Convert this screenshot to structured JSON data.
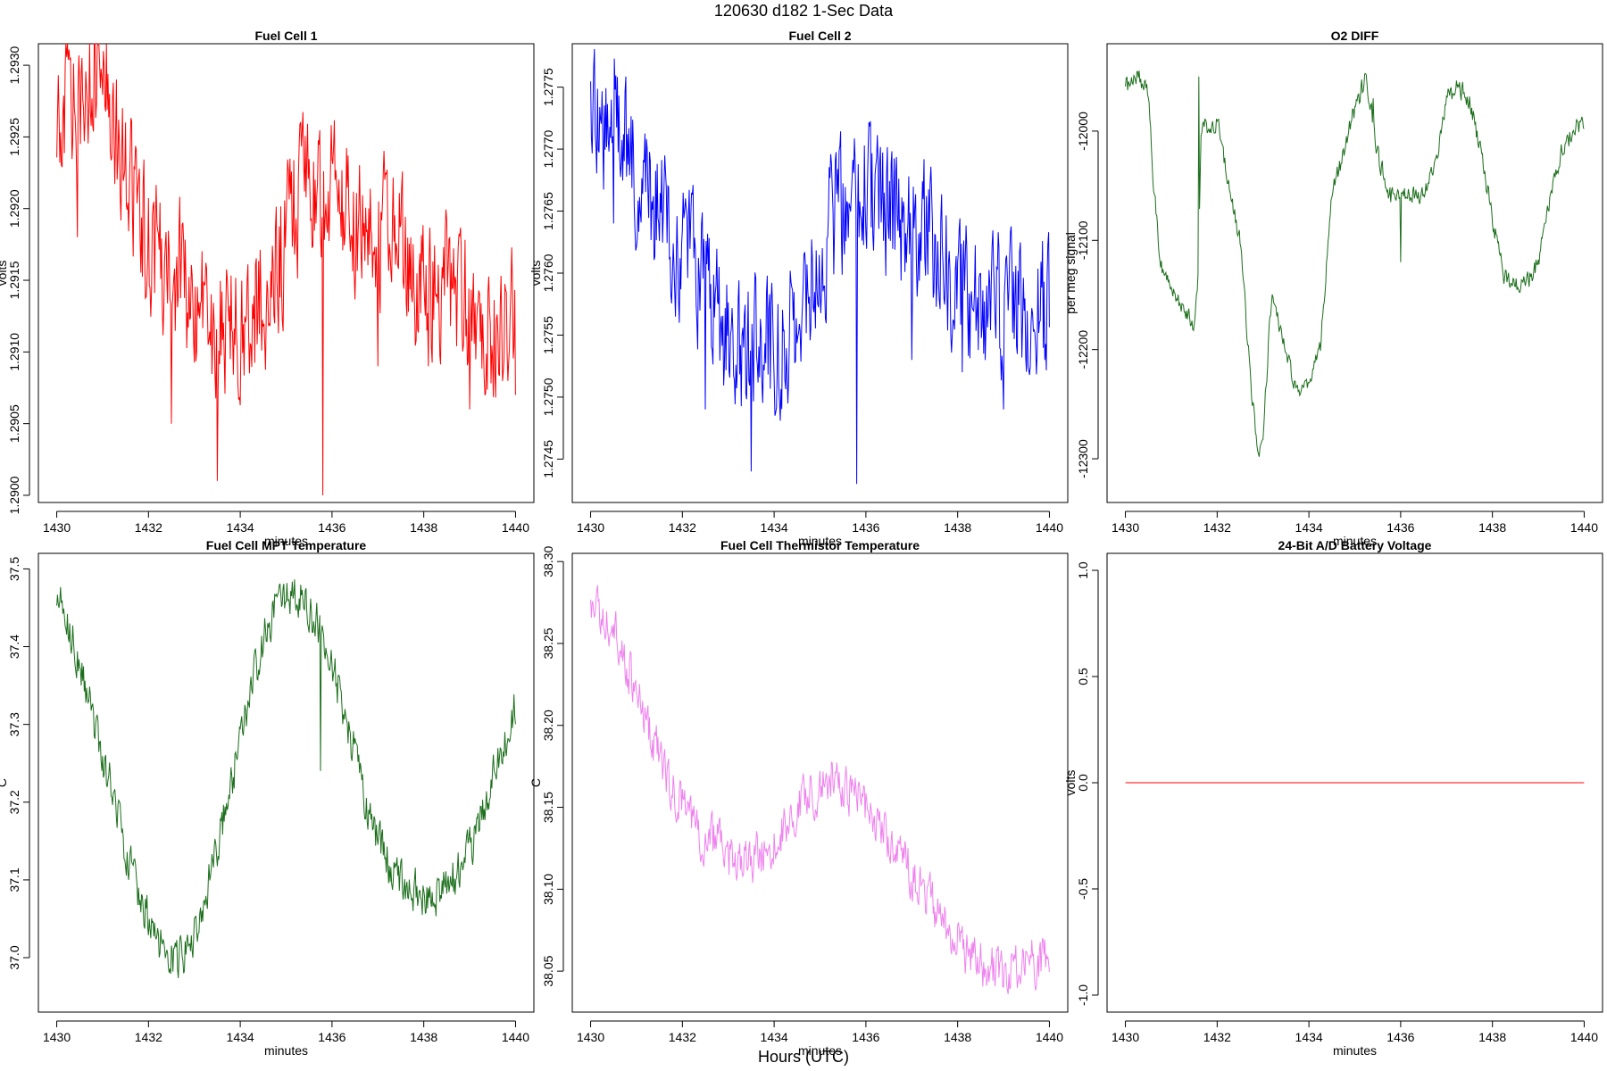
{
  "figure": {
    "title": "120630   d182   1-Sec Data",
    "xlabel": "Hours (UTC)"
  },
  "chart_data": [
    {
      "type": "line",
      "title": "Fuel Cell 1",
      "xlabel": "minutes",
      "ylabel": "volts",
      "xlim": [
        1429.6,
        1440.4
      ],
      "ylim": [
        1.28995,
        1.29315
      ],
      "xticks": [
        1430,
        1432,
        1434,
        1436,
        1438,
        1440
      ],
      "yticks": [
        1.29,
        1.2905,
        1.291,
        1.2915,
        1.292,
        1.2925,
        1.293
      ],
      "ytick_labels": [
        "1.2900",
        "1.2905",
        "1.2910",
        "1.2915",
        "1.2920",
        "1.2925",
        "1.2930"
      ],
      "color": "#ff0000",
      "noise": 0.00045,
      "spikes": [
        [
          1430.45,
          1.2918
        ],
        [
          1432.5,
          1.2905
        ],
        [
          1433.5,
          1.2901
        ],
        [
          1435.8,
          1.29
        ],
        [
          1437.0,
          1.2909
        ],
        [
          1438.1,
          1.2909
        ],
        [
          1439.0,
          1.2906
        ],
        [
          1440.0,
          1.2907
        ]
      ],
      "x": [
        1430.0,
        1430.25,
        1430.5,
        1430.75,
        1431.0,
        1431.25,
        1431.5,
        1431.75,
        1432.0,
        1432.25,
        1432.5,
        1432.75,
        1433.0,
        1433.25,
        1433.5,
        1433.75,
        1434.0,
        1434.25,
        1434.5,
        1434.75,
        1435.0,
        1435.25,
        1435.5,
        1435.75,
        1436.0,
        1436.25,
        1436.5,
        1436.75,
        1437.0,
        1437.25,
        1437.5,
        1437.75,
        1438.0,
        1438.25,
        1438.5,
        1438.75,
        1439.0,
        1439.25,
        1439.5,
        1439.75,
        1440.0
      ],
      "y": [
        1.2925,
        1.2928,
        1.2928,
        1.2929,
        1.2929,
        1.2926,
        1.2923,
        1.292,
        1.2918,
        1.2917,
        1.2916,
        1.2915,
        1.2913,
        1.2912,
        1.2911,
        1.2912,
        1.2912,
        1.2913,
        1.2914,
        1.2916,
        1.2918,
        1.292,
        1.2921,
        1.2921,
        1.2921,
        1.292,
        1.2919,
        1.2918,
        1.2918,
        1.2918,
        1.2917,
        1.2916,
        1.2915,
        1.2914,
        1.2914,
        1.2914,
        1.2913,
        1.2912,
        1.2912,
        1.2912,
        1.2912
      ]
    },
    {
      "type": "line",
      "title": "Fuel Cell 2",
      "xlabel": "minutes",
      "ylabel": "volts",
      "xlim": [
        1429.6,
        1440.4
      ],
      "ylim": [
        1.27415,
        1.27785
      ],
      "xticks": [
        1430,
        1432,
        1434,
        1436,
        1438,
        1440
      ],
      "yticks": [
        1.2745,
        1.275,
        1.2755,
        1.276,
        1.2765,
        1.277,
        1.2775
      ],
      "ytick_labels": [
        "1.2745",
        "1.2750",
        "1.2755",
        "1.2760",
        "1.2765",
        "1.2770",
        "1.2775"
      ],
      "color": "#0000ff",
      "noise": 0.0005,
      "spikes": [
        [
          1430.5,
          1.2764
        ],
        [
          1432.5,
          1.2749
        ],
        [
          1433.5,
          1.2744
        ],
        [
          1435.8,
          1.2743
        ],
        [
          1437.0,
          1.2753
        ],
        [
          1438.1,
          1.2752
        ],
        [
          1439.0,
          1.2749
        ],
        [
          1439.9,
          1.2753
        ]
      ],
      "x": [
        1430.0,
        1430.25,
        1430.5,
        1430.75,
        1431.0,
        1431.25,
        1431.5,
        1431.75,
        1432.0,
        1432.25,
        1432.5,
        1432.75,
        1433.0,
        1433.25,
        1433.5,
        1433.75,
        1434.0,
        1434.25,
        1434.5,
        1434.75,
        1435.0,
        1435.25,
        1435.5,
        1435.75,
        1436.0,
        1436.25,
        1436.5,
        1436.75,
        1437.0,
        1437.25,
        1437.5,
        1437.75,
        1438.0,
        1438.25,
        1438.5,
        1438.75,
        1439.0,
        1439.25,
        1439.5,
        1439.75,
        1440.0
      ],
      "y": [
        1.2771,
        1.2772,
        1.2773,
        1.2771,
        1.2768,
        1.2766,
        1.2765,
        1.2763,
        1.2762,
        1.276,
        1.2758,
        1.2756,
        1.2755,
        1.2754,
        1.2754,
        1.2754,
        1.2754,
        1.2755,
        1.2756,
        1.2758,
        1.2761,
        1.2764,
        1.2766,
        1.2767,
        1.2767,
        1.2766,
        1.2765,
        1.2764,
        1.2764,
        1.2764,
        1.2762,
        1.276,
        1.2759,
        1.2758,
        1.2758,
        1.2758,
        1.2757,
        1.2757,
        1.2757,
        1.2757,
        1.2757
      ]
    },
    {
      "type": "line",
      "title": "O2 DIFF",
      "xlabel": "minutes",
      "ylabel": "per meg signal",
      "xlim": [
        1429.6,
        1440.4
      ],
      "ylim": [
        -12340,
        -11920
      ],
      "xticks": [
        1430,
        1432,
        1434,
        1436,
        1438,
        1440
      ],
      "yticks": [
        -12300,
        -12200,
        -12100,
        -12000
      ],
      "ytick_labels": [
        "-12300",
        "-12200",
        "-12100",
        "-12000"
      ],
      "color": "#1b6e1b",
      "noise": 8,
      "spikes": [
        [
          1431.6,
          -11950
        ],
        [
          1435.4,
          -11970
        ],
        [
          1436.0,
          -12120
        ],
        [
          1437.1,
          -11960
        ]
      ],
      "x": [
        1430.0,
        1430.25,
        1430.5,
        1430.6,
        1430.75,
        1431.0,
        1431.25,
        1431.5,
        1431.6,
        1431.65,
        1432.0,
        1432.25,
        1432.5,
        1432.75,
        1432.9,
        1433.0,
        1433.2,
        1433.4,
        1433.75,
        1434.0,
        1434.25,
        1434.5,
        1434.75,
        1435.0,
        1435.25,
        1435.5,
        1435.75,
        1436.0,
        1436.25,
        1436.5,
        1436.75,
        1437.0,
        1437.25,
        1437.5,
        1437.75,
        1438.0,
        1438.25,
        1438.5,
        1438.75,
        1439.0,
        1439.25,
        1439.5,
        1439.75,
        1440.0
      ],
      "y": [
        -11960,
        -11950,
        -11960,
        -12040,
        -12120,
        -12150,
        -12160,
        -12180,
        -12120,
        -12000,
        -11990,
        -12050,
        -12100,
        -12240,
        -12300,
        -12280,
        -12140,
        -12190,
        -12240,
        -12230,
        -12200,
        -12060,
        -12020,
        -11980,
        -11950,
        -12020,
        -12060,
        -12060,
        -12060,
        -12060,
        -12030,
        -11970,
        -11960,
        -11970,
        -12020,
        -12080,
        -12130,
        -12140,
        -12140,
        -12120,
        -12060,
        -12020,
        -12000,
        -11990
      ]
    },
    {
      "type": "line",
      "title": "Fuel Cell MPT Temperature",
      "xlabel": "minutes",
      "ylabel": "C",
      "xlim": [
        1429.6,
        1440.4
      ],
      "ylim": [
        36.93,
        37.52
      ],
      "xticks": [
        1430,
        1432,
        1434,
        1436,
        1438,
        1440
      ],
      "yticks": [
        37.0,
        37.1,
        37.2,
        37.3,
        37.4,
        37.5
      ],
      "ytick_labels": [
        "37.0",
        "37.1",
        "37.2",
        "37.3",
        "37.4",
        "37.5"
      ],
      "color": "#1b6e1b",
      "noise": 0.025,
      "spikes": [
        [
          1435.75,
          37.24
        ]
      ],
      "x": [
        1430.0,
        1430.25,
        1430.5,
        1430.75,
        1431.0,
        1431.25,
        1431.5,
        1431.75,
        1432.0,
        1432.25,
        1432.5,
        1432.75,
        1433.0,
        1433.25,
        1433.5,
        1433.75,
        1434.0,
        1434.25,
        1434.5,
        1434.75,
        1435.0,
        1435.25,
        1435.5,
        1435.75,
        1436.0,
        1436.25,
        1436.5,
        1436.75,
        1437.0,
        1437.25,
        1437.5,
        1437.75,
        1438.0,
        1438.25,
        1438.5,
        1438.75,
        1439.0,
        1439.25,
        1439.5,
        1439.75,
        1440.0
      ],
      "y": [
        37.47,
        37.43,
        37.38,
        37.32,
        37.26,
        37.2,
        37.14,
        37.09,
        37.05,
        37.02,
        37.0,
        37.0,
        37.03,
        37.08,
        37.14,
        37.21,
        37.28,
        37.35,
        37.41,
        37.45,
        37.47,
        37.47,
        37.45,
        37.42,
        37.38,
        37.32,
        37.26,
        37.2,
        37.15,
        37.12,
        37.1,
        37.09,
        37.08,
        37.08,
        37.09,
        37.11,
        37.14,
        37.18,
        37.23,
        37.28,
        37.32
      ]
    },
    {
      "type": "line",
      "title": "Fuel Cell Thermistor Temperature",
      "xlabel": "minutes",
      "ylabel": "C",
      "xlim": [
        1429.6,
        1440.4
      ],
      "ylim": [
        38.025,
        38.305
      ],
      "xticks": [
        1430,
        1432,
        1434,
        1436,
        1438,
        1440
      ],
      "yticks": [
        38.05,
        38.1,
        38.15,
        38.2,
        38.25,
        38.3
      ],
      "ytick_labels": [
        "38.05",
        "38.10",
        "38.15",
        "38.20",
        "38.25",
        "38.30"
      ],
      "color": "#ee82ee",
      "noise": 0.013,
      "spikes": [],
      "x": [
        1430.0,
        1430.25,
        1430.5,
        1430.75,
        1431.0,
        1431.25,
        1431.5,
        1431.75,
        1432.0,
        1432.25,
        1432.5,
        1432.75,
        1433.0,
        1433.25,
        1433.5,
        1433.75,
        1434.0,
        1434.25,
        1434.5,
        1434.75,
        1435.0,
        1435.25,
        1435.5,
        1435.75,
        1436.0,
        1436.25,
        1436.5,
        1436.75,
        1437.0,
        1437.25,
        1437.5,
        1437.75,
        1438.0,
        1438.25,
        1438.5,
        1438.75,
        1439.0,
        1439.25,
        1439.5,
        1439.75,
        1440.0
      ],
      "y": [
        38.27,
        38.27,
        38.26,
        38.24,
        38.22,
        38.2,
        38.18,
        38.16,
        38.15,
        38.14,
        38.13,
        38.13,
        38.12,
        38.12,
        38.12,
        38.12,
        38.13,
        38.14,
        38.15,
        38.16,
        38.16,
        38.17,
        38.16,
        38.16,
        38.15,
        38.14,
        38.13,
        38.12,
        38.11,
        38.1,
        38.09,
        38.08,
        38.07,
        38.06,
        38.055,
        38.05,
        38.05,
        38.05,
        38.055,
        38.055,
        38.06
      ]
    },
    {
      "type": "line",
      "title": "24-Bit A/D Battery Voltage",
      "xlabel": "minutes",
      "ylabel": "volts",
      "xlim": [
        1429.6,
        1440.4
      ],
      "ylim": [
        -1.08,
        1.08
      ],
      "xticks": [
        1430,
        1432,
        1434,
        1436,
        1438,
        1440
      ],
      "yticks": [
        -1.0,
        -0.5,
        0.0,
        0.5,
        1.0
      ],
      "ytick_labels": [
        "-1.0",
        "-0.5",
        "0.0",
        "0.5",
        "1.0"
      ],
      "color": "#ff0000",
      "noise": 0,
      "spikes": [],
      "x": [
        1430,
        1440
      ],
      "y": [
        0,
        0
      ]
    }
  ]
}
